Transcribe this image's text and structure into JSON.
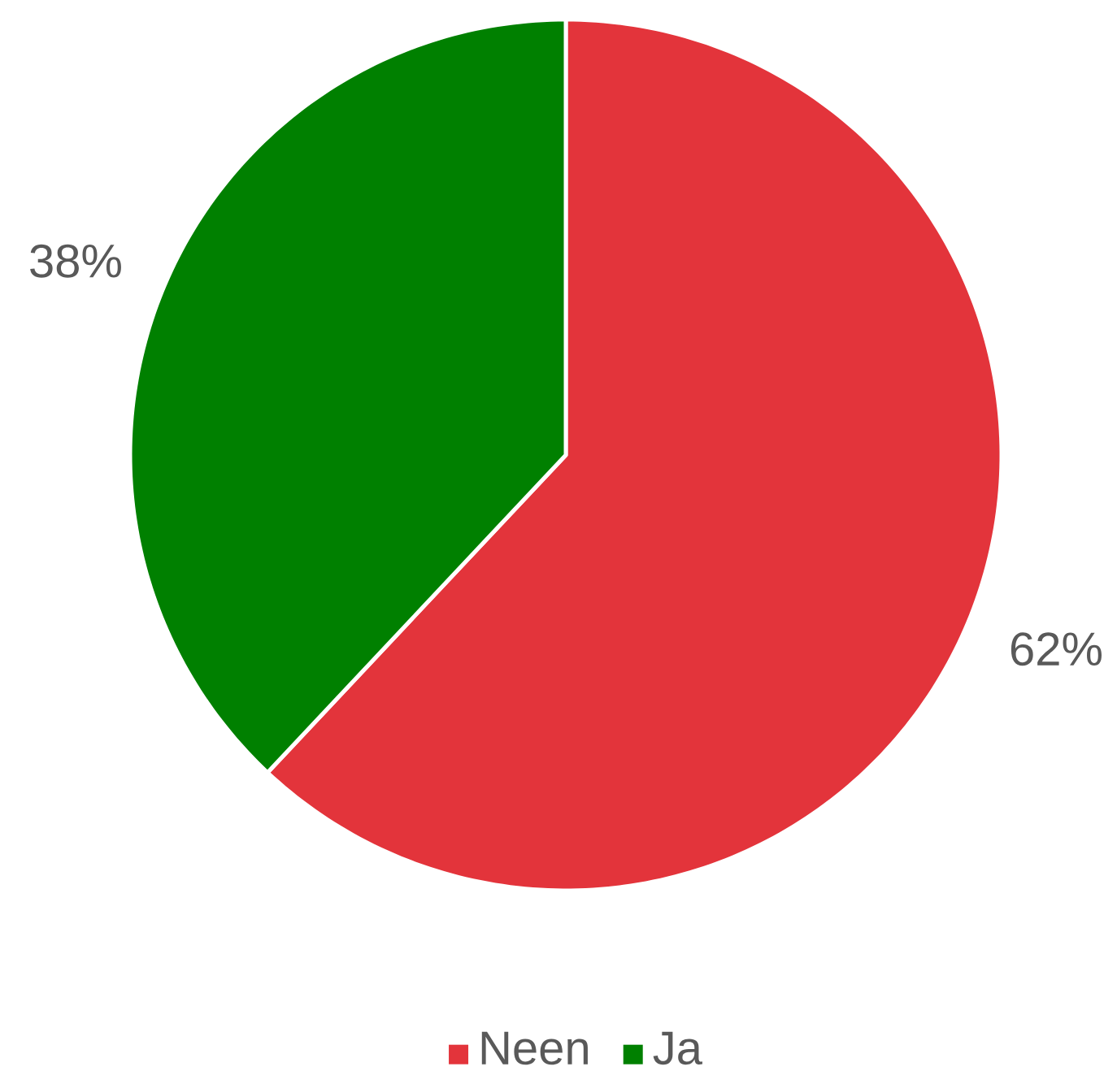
{
  "chart_data": {
    "type": "pie",
    "categories": [
      "Neen",
      "Ja"
    ],
    "values": [
      62,
      38
    ],
    "colors": [
      "#e3343b",
      "#008000"
    ],
    "value_labels": [
      "62%",
      "38%"
    ],
    "legend": "bottom"
  }
}
